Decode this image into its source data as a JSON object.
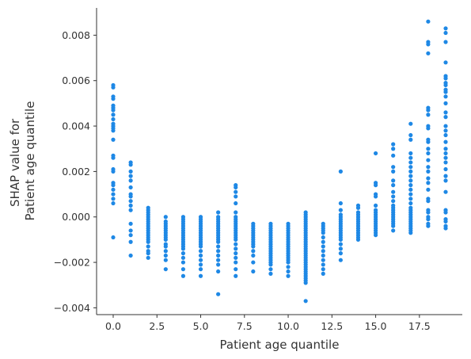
{
  "chart_data": {
    "type": "scatter",
    "title": "",
    "xlabel": "Patient age quantile",
    "ylabel_lines": [
      "SHAP value for",
      "Patient age quantile"
    ],
    "xlim": [
      -0.95,
      19.95
    ],
    "ylim": [
      -0.0043,
      0.0092
    ],
    "x_ticks": [
      {
        "value": 0.0,
        "label": "0.0"
      },
      {
        "value": 2.5,
        "label": "2.5"
      },
      {
        "value": 5.0,
        "label": "5.0"
      },
      {
        "value": 7.5,
        "label": "7.5"
      },
      {
        "value": 10.0,
        "label": "10.0"
      },
      {
        "value": 12.5,
        "label": "12.5"
      },
      {
        "value": 15.0,
        "label": "15.0"
      },
      {
        "value": 17.5,
        "label": "17.5"
      }
    ],
    "y_ticks": [
      {
        "value": 0.008,
        "label": "0.008"
      },
      {
        "value": 0.006,
        "label": "0.006"
      },
      {
        "value": 0.004,
        "label": "0.004"
      },
      {
        "value": 0.002,
        "label": "0.002"
      },
      {
        "value": 0.0,
        "label": "0.000"
      },
      {
        "value": -0.002,
        "label": "−0.002"
      },
      {
        "value": -0.004,
        "label": "−0.004"
      }
    ],
    "grid": false,
    "point_color": "#1e88e5",
    "series": [
      {
        "x": 0,
        "y": [
          0.0058,
          0.0057,
          0.0053,
          0.0052,
          0.0049,
          0.0048,
          0.0047,
          0.0045,
          0.0043,
          0.0041,
          0.004,
          0.0039,
          0.0038,
          0.0034,
          0.0027,
          0.0026,
          0.0021,
          0.002,
          0.0015,
          0.0014,
          0.0012,
          0.001,
          0.0008,
          0.0006,
          -0.0009
        ]
      },
      {
        "x": 1,
        "y": [
          0.0024,
          0.0023,
          0.002,
          0.0018,
          0.0016,
          0.0013,
          0.001,
          0.0009,
          0.0007,
          0.0005,
          0.0003,
          -0.0003,
          -0.0006,
          -0.0008,
          -0.0011,
          -0.0017
        ]
      },
      {
        "x": 2,
        "y": [
          0.0004,
          0.0003,
          0.0002,
          0.0001,
          0.0,
          -0.0001,
          -0.0002,
          -0.0003,
          -0.0004,
          -0.0005,
          -0.0006,
          -0.0007,
          -0.0008,
          -0.0009,
          -0.001,
          -0.0011,
          -0.0013,
          -0.0015,
          -0.0016,
          -0.0018
        ]
      },
      {
        "x": 3,
        "y": [
          0.0,
          -0.0002,
          -0.0003,
          -0.0004,
          -0.0005,
          -0.0006,
          -0.0007,
          -0.0008,
          -0.0009,
          -0.001,
          -0.0012,
          -0.0013,
          -0.0015,
          -0.0017,
          -0.0019,
          -0.0023
        ]
      },
      {
        "x": 4,
        "y": [
          0.0,
          -0.0001,
          -0.0002,
          -0.0003,
          -0.0004,
          -0.0005,
          -0.0006,
          -0.0007,
          -0.0008,
          -0.0009,
          -0.001,
          -0.0011,
          -0.0012,
          -0.0013,
          -0.0014,
          -0.0016,
          -0.0018,
          -0.002,
          -0.0023,
          -0.0026
        ]
      },
      {
        "x": 5,
        "y": [
          0.0,
          -0.0001,
          -0.0002,
          -0.0003,
          -0.0004,
          -0.0005,
          -0.0006,
          -0.0007,
          -0.0008,
          -0.0009,
          -0.001,
          -0.0011,
          -0.0012,
          -0.0013,
          -0.0015,
          -0.0017,
          -0.0019,
          -0.0021,
          -0.0023,
          -0.0026
        ]
      },
      {
        "x": 6,
        "y": [
          0.0002,
          0.0,
          -0.0001,
          -0.0002,
          -0.0003,
          -0.0004,
          -0.0005,
          -0.0006,
          -0.0007,
          -0.0008,
          -0.0009,
          -0.001,
          -0.0011,
          -0.0013,
          -0.0015,
          -0.0017,
          -0.0019,
          -0.0021,
          -0.0024,
          -0.0034
        ]
      },
      {
        "x": 7,
        "y": [
          0.0014,
          0.0013,
          0.0011,
          0.0009,
          0.0006,
          0.0002,
          0.0,
          -0.0001,
          -0.0002,
          -0.0003,
          -0.0004,
          -0.0005,
          -0.0006,
          -0.0007,
          -0.0008,
          -0.0009,
          -0.001,
          -0.0012,
          -0.0014,
          -0.0016,
          -0.0018,
          -0.002,
          -0.0023,
          -0.0026
        ]
      },
      {
        "x": 8,
        "y": [
          -0.0003,
          -0.0004,
          -0.0005,
          -0.0006,
          -0.0007,
          -0.0008,
          -0.0009,
          -0.001,
          -0.0011,
          -0.0012,
          -0.0013,
          -0.0015,
          -0.0017,
          -0.002,
          -0.0024
        ]
      },
      {
        "x": 9,
        "y": [
          -0.0003,
          -0.0004,
          -0.0005,
          -0.0006,
          -0.0007,
          -0.0008,
          -0.0009,
          -0.001,
          -0.0011,
          -0.0012,
          -0.0013,
          -0.0014,
          -0.0015,
          -0.0016,
          -0.0017,
          -0.0018,
          -0.0019,
          -0.002,
          -0.0021,
          -0.0023,
          -0.0025
        ]
      },
      {
        "x": 10,
        "y": [
          -0.0003,
          -0.0004,
          -0.0005,
          -0.0006,
          -0.0007,
          -0.0008,
          -0.0009,
          -0.001,
          -0.0011,
          -0.0012,
          -0.0013,
          -0.0014,
          -0.0015,
          -0.0016,
          -0.0017,
          -0.0018,
          -0.0019,
          -0.002,
          -0.0022,
          -0.0024,
          -0.0026
        ]
      },
      {
        "x": 11,
        "y": [
          0.0002,
          0.0001,
          0.0,
          -0.0001,
          -0.0002,
          -0.0003,
          -0.0004,
          -0.0005,
          -0.0006,
          -0.0007,
          -0.0008,
          -0.0009,
          -0.001,
          -0.0011,
          -0.0012,
          -0.0013,
          -0.0014,
          -0.0015,
          -0.0016,
          -0.0017,
          -0.0018,
          -0.0019,
          -0.002,
          -0.0021,
          -0.0022,
          -0.0023,
          -0.0024,
          -0.0025,
          -0.0026,
          -0.0027,
          -0.0028,
          -0.0029,
          -0.0037
        ]
      },
      {
        "x": 12,
        "y": [
          -0.0003,
          -0.0004,
          -0.0005,
          -0.0006,
          -0.0007,
          -0.0009,
          -0.0011,
          -0.0013,
          -0.0015,
          -0.0017,
          -0.0019,
          -0.0021,
          -0.0023,
          -0.0025
        ]
      },
      {
        "x": 13,
        "y": [
          0.002,
          0.0006,
          0.0003,
          0.0001,
          0.0,
          -0.0001,
          -0.0002,
          -0.0003,
          -0.0004,
          -0.0005,
          -0.0006,
          -0.0007,
          -0.0008,
          -0.0009,
          -0.001,
          -0.0012,
          -0.0014,
          -0.0016,
          -0.0019
        ]
      },
      {
        "x": 14,
        "y": [
          0.0005,
          0.0004,
          0.0002,
          0.0001,
          0.0,
          -0.0001,
          -0.0002,
          -0.0003,
          -0.0004,
          -0.0005,
          -0.0006,
          -0.0007,
          -0.0008,
          -0.0009,
          -0.001
        ]
      },
      {
        "x": 15,
        "y": [
          0.0028,
          0.0015,
          0.0014,
          0.001,
          0.0009,
          0.0005,
          0.0003,
          0.0002,
          0.0001,
          0.0,
          -0.0001,
          -0.0002,
          -0.0003,
          -0.0004,
          -0.0005,
          -0.0006,
          -0.0007,
          -0.0008
        ]
      },
      {
        "x": 16,
        "y": [
          0.0032,
          0.003,
          0.0027,
          0.0022,
          0.002,
          0.0016,
          0.0014,
          0.0011,
          0.0009,
          0.0007,
          0.0005,
          0.0004,
          0.0003,
          0.0002,
          0.0001,
          0.0,
          -0.0001,
          -0.0002,
          -0.0003,
          -0.0004,
          -0.0006
        ]
      },
      {
        "x": 17,
        "y": [
          0.0041,
          0.0036,
          0.0034,
          0.0028,
          0.0026,
          0.0024,
          0.0022,
          0.002,
          0.0018,
          0.0016,
          0.0014,
          0.0012,
          0.001,
          0.0008,
          0.0006,
          0.0004,
          0.0003,
          0.0002,
          0.0001,
          0.0,
          -0.0001,
          -0.0002,
          -0.0003,
          -0.0004,
          -0.0005,
          -0.0006,
          -0.0007
        ]
      },
      {
        "x": 18,
        "y": [
          0.0086,
          0.0077,
          0.0076,
          0.0072,
          0.0048,
          0.0047,
          0.0045,
          0.004,
          0.0039,
          0.0034,
          0.0033,
          0.003,
          0.0028,
          0.0025,
          0.0022,
          0.002,
          0.0017,
          0.0015,
          0.0012,
          0.0008,
          0.0007,
          0.0003,
          0.0002,
          0.0,
          -0.0001,
          -0.0003,
          -0.0004
        ]
      },
      {
        "x": 19,
        "y": [
          0.0083,
          0.0081,
          0.0077,
          0.0068,
          0.0062,
          0.0061,
          0.0059,
          0.0058,
          0.0056,
          0.0055,
          0.0053,
          0.005,
          0.0046,
          0.0044,
          0.004,
          0.0038,
          0.0036,
          0.0033,
          0.003,
          0.0028,
          0.0026,
          0.0024,
          0.0021,
          0.0018,
          0.0016,
          0.0011,
          0.0003,
          0.0002,
          -0.0001,
          -0.0002,
          -0.0004,
          -0.0005
        ]
      }
    ]
  }
}
